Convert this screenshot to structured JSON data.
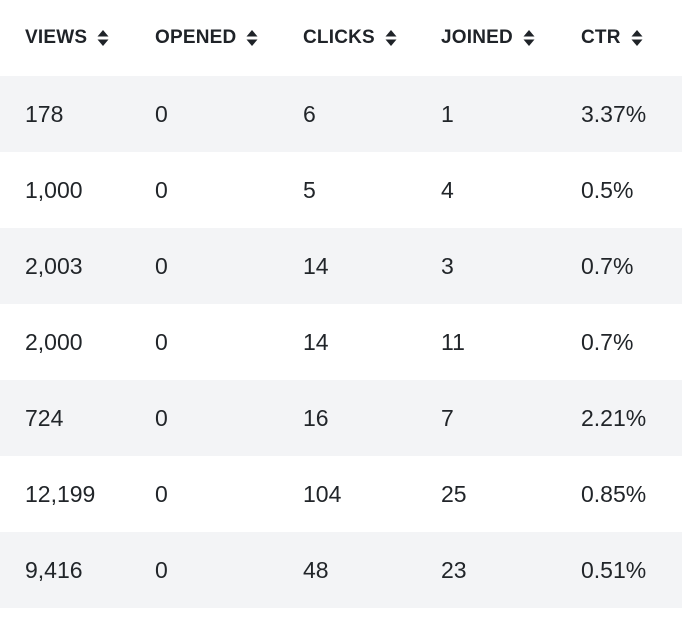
{
  "table": {
    "columns": [
      {
        "label": "VIEWS",
        "sort_icon": "sort-icon"
      },
      {
        "label": "OPENED",
        "sort_icon": "sort-icon"
      },
      {
        "label": "CLICKS",
        "sort_icon": "sort-icon"
      },
      {
        "label": "JOINED",
        "sort_icon": "sort-icon"
      },
      {
        "label": "CTR",
        "sort_icon": "sort-icon"
      }
    ],
    "rows": [
      [
        "178",
        "0",
        "6",
        "1",
        "3.37%"
      ],
      [
        "1,000",
        "0",
        "5",
        "4",
        "0.5%"
      ],
      [
        "2,003",
        "0",
        "14",
        "3",
        "0.7%"
      ],
      [
        "2,000",
        "0",
        "14",
        "11",
        "0.7%"
      ],
      [
        "724",
        "0",
        "16",
        "7",
        "2.21%"
      ],
      [
        "12,199",
        "0",
        "104",
        "25",
        "0.85%"
      ],
      [
        "9,416",
        "0",
        "48",
        "23",
        "0.51%"
      ]
    ],
    "colors": {
      "striped_row": "#f3f4f6",
      "plain_row": "#ffffff",
      "text": "#212529"
    }
  }
}
